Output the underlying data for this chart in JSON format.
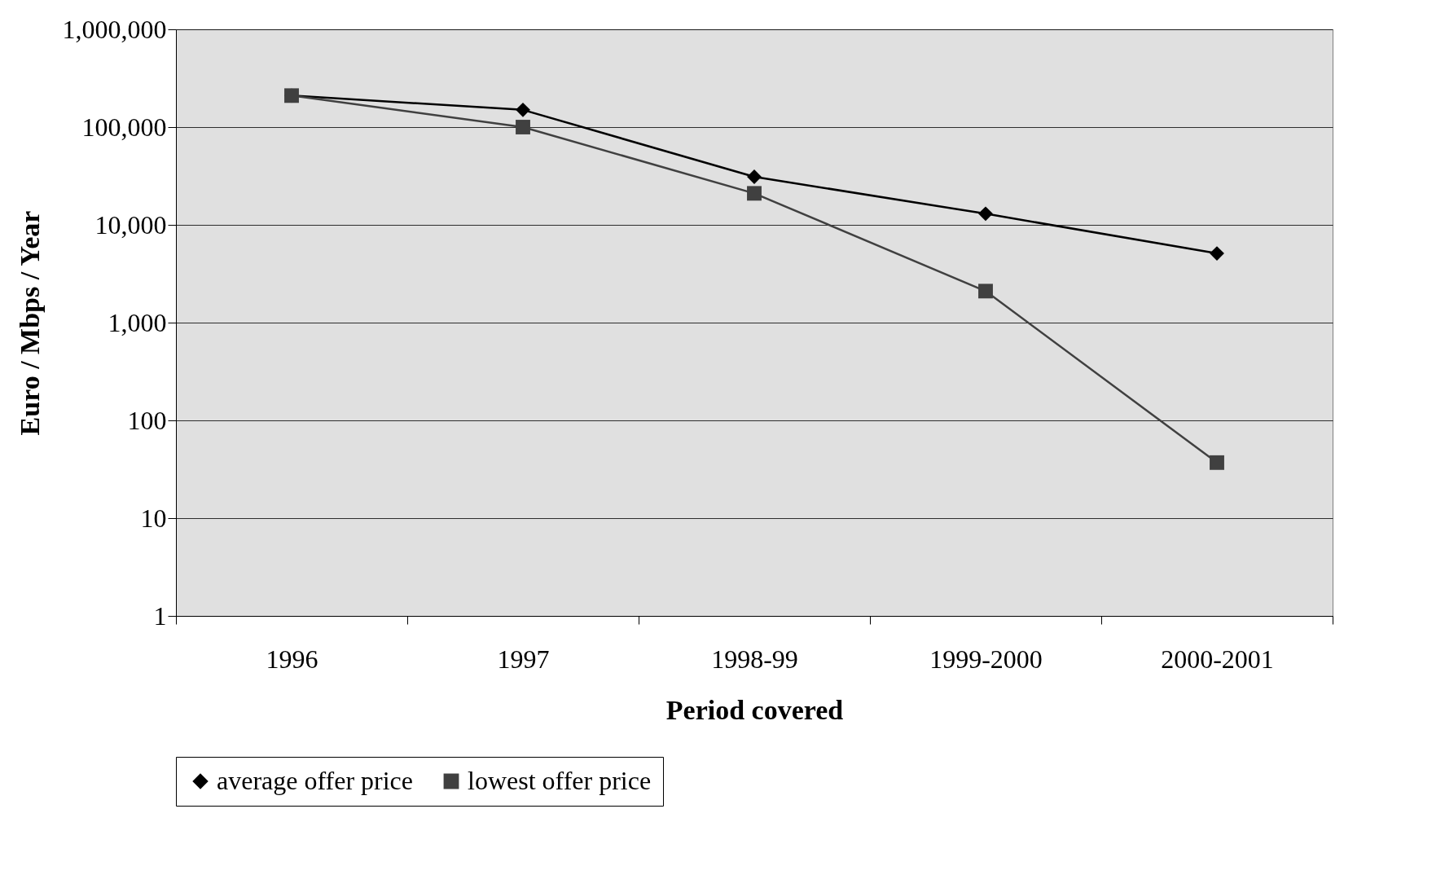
{
  "chart_data": {
    "type": "line",
    "xlabel": "Period covered",
    "ylabel": "Euro / Mbps / Year",
    "categories": [
      "1996",
      "1997",
      "1998-99",
      "1999-2000",
      "2000-2001"
    ],
    "series": [
      {
        "name": "average offer price",
        "color": "#000000",
        "marker": "diamond",
        "values": [
          210000,
          150000,
          31000,
          13000,
          5100
        ]
      },
      {
        "name": "lowest offer price",
        "color": "#404040",
        "marker": "square",
        "values": [
          210000,
          100000,
          21000,
          2100,
          37
        ]
      }
    ],
    "log": true,
    "ylim": [
      1,
      1000000
    ],
    "yticks": [
      1,
      10,
      100,
      {
        "value": 1000,
        "label": "1,000"
      },
      {
        "value": 10000,
        "label": "10,000"
      },
      {
        "value": 100000,
        "label": "100,000"
      },
      {
        "value": 1000000,
        "label": "1,000,000"
      }
    ],
    "grid": "y",
    "legend": "bottom",
    "line_style": "solid"
  }
}
